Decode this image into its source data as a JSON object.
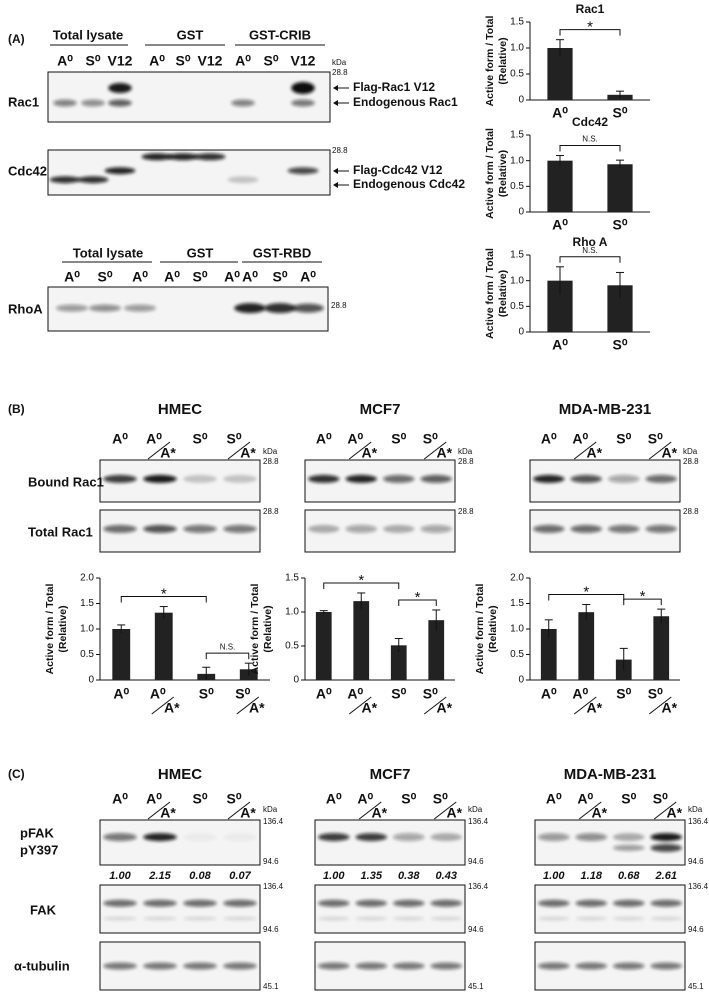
{
  "panel_a": {
    "label": "(A)",
    "kda_unit": "kDa",
    "blot_top": {
      "groups": [
        "Total lysate",
        "GST",
        "GST-CRIB"
      ],
      "lanes": [
        "A⁰",
        "S⁰",
        "V12",
        "A⁰",
        "S⁰",
        "V12",
        "A⁰",
        "S⁰",
        "V12"
      ],
      "rows": [
        {
          "label": "Rac1",
          "marker": "28.8",
          "arrows": [
            "Flag-Rac1 V12",
            "Endogenous Rac1"
          ]
        },
        {
          "label": "Cdc42",
          "marker": "28.8",
          "arrows": [
            "Flag-Cdc42 V12",
            "Endogenous Cdc42"
          ]
        }
      ]
    },
    "blot_rhoa": {
      "groups": [
        "Total lysate",
        "GST",
        "GST-RBD"
      ],
      "lanes": [
        "A⁰",
        "S⁰",
        "A⁰",
        "A⁰",
        "S⁰",
        "A⁰",
        "A⁰",
        "S⁰",
        "A⁰"
      ],
      "label": "RhoA",
      "marker": "28.8"
    }
  },
  "panel_b": {
    "label": "(B)",
    "row_labels": [
      "Bound Rac1",
      "Total Rac1"
    ],
    "cells": [
      {
        "title": "HMEC",
        "lanes": [
          {
            "top": "A⁰"
          },
          {
            "top": "A⁰",
            "bottom": "A*"
          },
          {
            "top": "S⁰"
          },
          {
            "top": "S⁰",
            "bottom": "A*"
          }
        ],
        "kda_unit": "kDa",
        "markers": [
          "28.8",
          "28.8"
        ]
      },
      {
        "title": "MCF7",
        "lanes": [
          {
            "top": "A⁰"
          },
          {
            "top": "A⁰",
            "bottom": "A*"
          },
          {
            "top": "S⁰"
          },
          {
            "top": "S⁰",
            "bottom": "A*"
          }
        ],
        "kda_unit": "kDa",
        "markers": [
          "28.8",
          "28.8"
        ]
      },
      {
        "title": "MDA-MB-231",
        "lanes": [
          {
            "top": "A⁰"
          },
          {
            "top": "A⁰",
            "bottom": "A*"
          },
          {
            "top": "S⁰"
          },
          {
            "top": "S⁰",
            "bottom": "A*"
          }
        ],
        "kda_unit": "kDa",
        "markers": [
          "28.8",
          "28.8"
        ]
      }
    ]
  },
  "panel_c": {
    "label": "(C)",
    "row_labels": {
      "pfak": [
        "pFAK",
        "pY397"
      ],
      "fak": "FAK",
      "tubulin": "α-tubulin"
    },
    "cells": [
      {
        "title": "HMEC",
        "lanes": [
          {
            "top": "A⁰"
          },
          {
            "top": "A⁰",
            "bottom": "A*"
          },
          {
            "top": "S⁰"
          },
          {
            "top": "S⁰",
            "bottom": "A*"
          }
        ],
        "kda_unit": "kDa",
        "markers": [
          "136.4",
          "94.6",
          "136.4",
          "94.6",
          "45.1"
        ],
        "quant": [
          "1.00",
          "2.15",
          "0.08",
          "0.07"
        ]
      },
      {
        "title": "MCF7",
        "lanes": [
          {
            "top": "A⁰"
          },
          {
            "top": "A⁰",
            "bottom": "A*"
          },
          {
            "top": "S⁰"
          },
          {
            "top": "S⁰",
            "bottom": "A*"
          }
        ],
        "kda_unit": "kDa",
        "markers": [
          "136.4",
          "94.6",
          "136.4",
          "94.6",
          "45.1"
        ],
        "quant": [
          "1.00",
          "1.35",
          "0.38",
          "0.43"
        ]
      },
      {
        "title": "MDA-MB-231",
        "lanes": [
          {
            "top": "A⁰"
          },
          {
            "top": "A⁰",
            "bottom": "A*"
          },
          {
            "top": "S⁰"
          },
          {
            "top": "S⁰",
            "bottom": "A*"
          }
        ],
        "kda_unit": "kDa",
        "markers": [
          "136.4",
          "94.6",
          "136.4",
          "94.6",
          "45.1"
        ],
        "quant": [
          "1.00",
          "1.18",
          "0.68",
          "2.61"
        ]
      }
    ]
  },
  "chart_data": [
    {
      "type": "bar",
      "title": "Rac1",
      "ylabel": [
        "Active form / Total",
        "(Relative)"
      ],
      "categories": [
        "A⁰",
        "S⁰"
      ],
      "values": [
        1.0,
        0.1
      ],
      "errors": [
        0.16,
        0.07
      ],
      "color": "#222222",
      "ylim": [
        0,
        1.5
      ],
      "yticks": [
        0,
        0.5,
        {
          "value": 1,
          "label": "1.0"
        },
        1.5
      ],
      "annotations": [
        "*"
      ]
    },
    {
      "type": "bar",
      "title": "Cdc42",
      "ylabel": [
        "Active form / Total",
        "(Relative)"
      ],
      "categories": [
        "A⁰",
        "S⁰"
      ],
      "values": [
        1.0,
        0.93
      ],
      "errors": [
        0.1,
        0.08
      ],
      "color": "#222222",
      "ylim": [
        0,
        1.5
      ],
      "yticks": [
        0,
        0.5,
        {
          "value": 1,
          "label": "1.0"
        },
        1.5
      ],
      "annotations": [
        "N.S."
      ]
    },
    {
      "type": "bar",
      "title": "Rho A",
      "ylabel": [
        "Active form / Total",
        "(Relative)"
      ],
      "categories": [
        "A⁰",
        "S⁰"
      ],
      "values": [
        1.0,
        0.91
      ],
      "errors": [
        0.27,
        0.25
      ],
      "color": "#222222",
      "ylim": [
        0,
        1.5
      ],
      "yticks": [
        0,
        0.5,
        {
          "value": 1,
          "label": "1.0"
        },
        1.5
      ],
      "annotations": [
        "N.S."
      ]
    },
    {
      "type": "bar",
      "ylabel": [
        "Active form / Total",
        "(Relative)"
      ],
      "categories": [
        {
          "top": "A⁰"
        },
        {
          "top": "A⁰",
          "bottom": "A*"
        },
        {
          "top": "S⁰"
        },
        {
          "top": "S⁰",
          "bottom": "A*"
        }
      ],
      "values": [
        1.0,
        1.32,
        0.12,
        0.21
      ],
      "errors": [
        0.08,
        0.12,
        0.13,
        0.12
      ],
      "color": "#222222",
      "ylim": [
        0,
        2
      ],
      "yticks": [
        0,
        0.5,
        {
          "value": 1,
          "label": "1.0"
        },
        1.5,
        {
          "value": 2,
          "label": "2.0"
        }
      ],
      "annotations": [
        "*",
        "N.S."
      ]
    },
    {
      "type": "bar",
      "ylabel": [
        "Active form / Total",
        "(Relative)"
      ],
      "categories": [
        {
          "top": "A⁰"
        },
        {
          "top": "A⁰",
          "bottom": "A*"
        },
        {
          "top": "S⁰"
        },
        {
          "top": "S⁰",
          "bottom": "A*"
        }
      ],
      "values": [
        1.0,
        1.16,
        0.51,
        0.88
      ],
      "errors": [
        0.02,
        0.12,
        0.1,
        0.15
      ],
      "color": "#222222",
      "ylim": [
        0,
        1.5
      ],
      "yticks": [
        0,
        0.5,
        {
          "value": 1,
          "label": "1.0"
        },
        1.5
      ],
      "annotations": [
        "*",
        "*"
      ]
    },
    {
      "type": "bar",
      "ylabel": [
        "Active form / Total",
        "(Relative)"
      ],
      "categories": [
        {
          "top": "A⁰"
        },
        {
          "top": "A⁰",
          "bottom": "A*"
        },
        {
          "top": "S⁰"
        },
        {
          "top": "S⁰",
          "bottom": "A*"
        }
      ],
      "values": [
        1.0,
        1.33,
        0.4,
        1.25
      ],
      "errors": [
        0.18,
        0.15,
        0.22,
        0.14
      ],
      "color": "#222222",
      "ylim": [
        0,
        2
      ],
      "yticks": [
        0,
        0.5,
        {
          "value": 1,
          "label": "1.0"
        },
        1.5,
        {
          "value": 2,
          "label": "2.0"
        }
      ],
      "annotations": [
        "*",
        "*"
      ]
    }
  ]
}
